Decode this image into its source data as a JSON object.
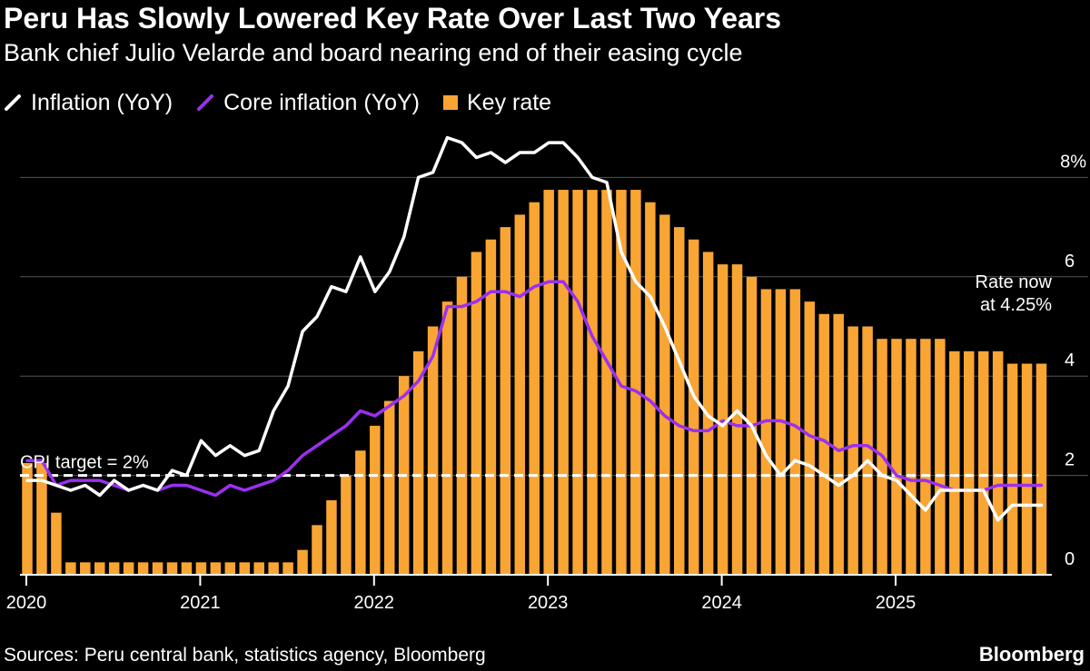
{
  "header": {
    "title": "Peru Has Slowly Lowered Key Rate Over Last Two Years",
    "subtitle": "Bank chief Julio Velarde and board nearing end of their easing cycle"
  },
  "legend": {
    "items": [
      {
        "label": "Inflation (YoY)",
        "color": "#ffffff",
        "icon": "line-slash-icon"
      },
      {
        "label": "Core inflation (YoY)",
        "color": "#9b30f0",
        "icon": "line-slash-icon"
      },
      {
        "label": "Key rate",
        "color": "#f9a534",
        "icon": "square-icon"
      }
    ]
  },
  "footer": {
    "source": "Sources: Peru central bank, statistics agency, Bloomberg",
    "brand": "Bloomberg"
  },
  "chart_data": {
    "type": "bar+line",
    "title": "Peru Has Slowly Lowered Key Rate Over Last Two Years",
    "subtitle": "Bank chief Julio Velarde and board nearing end of their easing cycle",
    "xlabel": "",
    "ylabel": "",
    "x_start": "2020-01",
    "x_end": "2025-11",
    "xlim": [
      0,
      71
    ],
    "ylim": [
      0,
      8.5
    ],
    "y_ticks": [
      {
        "value": 0,
        "label": "0"
      },
      {
        "value": 2,
        "label": "2"
      },
      {
        "value": 4,
        "label": "4"
      },
      {
        "value": 6,
        "label": "6"
      },
      {
        "value": 8,
        "label": "8%"
      }
    ],
    "x_ticks": [
      {
        "index": 0,
        "label": "2020"
      },
      {
        "index": 12,
        "label": "2021"
      },
      {
        "index": 24,
        "label": "2022"
      },
      {
        "index": 36,
        "label": "2023"
      },
      {
        "index": 48,
        "label": "2024"
      },
      {
        "index": 60,
        "label": "2025"
      }
    ],
    "grid": true,
    "legend_position": "top-left",
    "reference_line": {
      "value": 2,
      "label": "CPI target = 2%"
    },
    "annotation": {
      "lines": [
        "Rate now",
        "at 4.25%"
      ]
    },
    "series": [
      {
        "name": "Key rate",
        "type": "bar",
        "color": "#f9a534",
        "values": [
          2.25,
          2.25,
          1.25,
          0.25,
          0.25,
          0.25,
          0.25,
          0.25,
          0.25,
          0.25,
          0.25,
          0.25,
          0.25,
          0.25,
          0.25,
          0.25,
          0.25,
          0.25,
          0.25,
          0.5,
          1.0,
          1.5,
          2.0,
          2.5,
          3.0,
          3.5,
          4.0,
          4.5,
          5.0,
          5.5,
          6.0,
          6.5,
          6.75,
          7.0,
          7.25,
          7.5,
          7.75,
          7.75,
          7.75,
          7.75,
          7.75,
          7.75,
          7.75,
          7.5,
          7.25,
          7.0,
          6.75,
          6.5,
          6.25,
          6.25,
          6.0,
          5.75,
          5.75,
          5.75,
          5.5,
          5.25,
          5.25,
          5.0,
          5.0,
          4.75,
          4.75,
          4.75,
          4.75,
          4.75,
          4.5,
          4.5,
          4.5,
          4.5,
          4.25,
          4.25,
          4.25
        ]
      },
      {
        "name": "Inflation (YoY)",
        "type": "line",
        "color": "#ffffff",
        "values": [
          1.9,
          1.9,
          1.8,
          1.7,
          1.8,
          1.6,
          1.9,
          1.7,
          1.8,
          1.7,
          2.1,
          2.0,
          2.7,
          2.4,
          2.6,
          2.4,
          2.5,
          3.3,
          3.8,
          4.9,
          5.2,
          5.8,
          5.7,
          6.4,
          5.7,
          6.1,
          6.8,
          8.0,
          8.1,
          8.8,
          8.7,
          8.4,
          8.5,
          8.3,
          8.5,
          8.5,
          8.7,
          8.7,
          8.4,
          8.0,
          7.9,
          6.5,
          5.9,
          5.6,
          5.0,
          4.3,
          3.6,
          3.2,
          3.0,
          3.3,
          3.0,
          2.4,
          2.0,
          2.3,
          2.2,
          2.0,
          1.8,
          2.0,
          2.3,
          2.0,
          1.9,
          1.6,
          1.3,
          1.7,
          1.7,
          1.7,
          1.7,
          1.1,
          1.4,
          1.4,
          1.4
        ]
      },
      {
        "name": "Core inflation (YoY)",
        "type": "line",
        "color": "#9b30f0",
        "values": [
          2.3,
          2.3,
          1.8,
          1.9,
          1.9,
          1.9,
          1.8,
          1.7,
          1.8,
          1.7,
          1.8,
          1.8,
          1.7,
          1.6,
          1.8,
          1.7,
          1.8,
          1.9,
          2.1,
          2.4,
          2.6,
          2.8,
          3.0,
          3.3,
          3.2,
          3.4,
          3.6,
          3.9,
          4.4,
          5.4,
          5.4,
          5.5,
          5.7,
          5.7,
          5.6,
          5.8,
          5.9,
          5.9,
          5.5,
          4.8,
          4.3,
          3.8,
          3.7,
          3.5,
          3.2,
          3.0,
          2.9,
          2.9,
          3.1,
          3.0,
          3.0,
          3.1,
          3.1,
          3.0,
          2.8,
          2.7,
          2.5,
          2.6,
          2.6,
          2.4,
          2.0,
          1.9,
          1.9,
          1.8,
          1.7,
          1.7,
          1.7,
          1.8,
          1.8,
          1.8,
          1.8
        ]
      }
    ]
  }
}
